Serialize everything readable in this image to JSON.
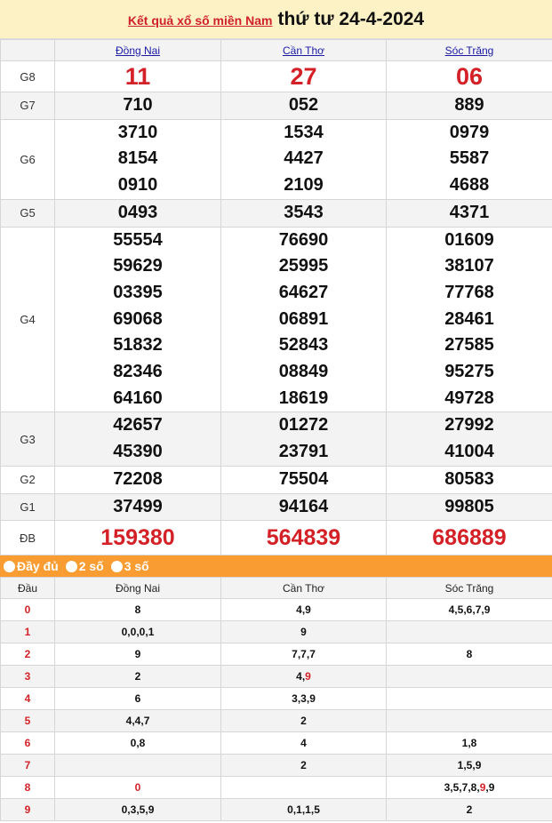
{
  "title": {
    "link": "Kết quả xổ số miền Nam",
    "date": "thứ tư 24-4-2024"
  },
  "provinces": [
    "Đồng Nai",
    "Cần Thơ",
    "Sóc Trăng"
  ],
  "prizes": [
    {
      "label": "G8",
      "cls": "g8",
      "values": [
        [
          "11"
        ],
        [
          "27"
        ],
        [
          "06"
        ]
      ]
    },
    {
      "label": "G7",
      "values": [
        [
          "710"
        ],
        [
          "052"
        ],
        [
          "889"
        ]
      ]
    },
    {
      "label": "G6",
      "values": [
        [
          "3710",
          "8154",
          "0910"
        ],
        [
          "1534",
          "4427",
          "2109"
        ],
        [
          "0979",
          "5587",
          "4688"
        ]
      ]
    },
    {
      "label": "G5",
      "values": [
        [
          "0493"
        ],
        [
          "3543"
        ],
        [
          "4371"
        ]
      ]
    },
    {
      "label": "G4",
      "values": [
        [
          "55554",
          "59629",
          "03395",
          "69068",
          "51832",
          "82346",
          "64160"
        ],
        [
          "76690",
          "25995",
          "64627",
          "06891",
          "52843",
          "08849",
          "18619"
        ],
        [
          "01609",
          "38107",
          "77768",
          "28461",
          "27585",
          "95275",
          "49728"
        ]
      ]
    },
    {
      "label": "G3",
      "values": [
        [
          "42657",
          "45390"
        ],
        [
          "01272",
          "23791"
        ],
        [
          "27992",
          "41004"
        ]
      ]
    },
    {
      "label": "G2",
      "values": [
        [
          "72208"
        ],
        [
          "75504"
        ],
        [
          "80583"
        ]
      ]
    },
    {
      "label": "G1",
      "values": [
        [
          "37499"
        ],
        [
          "94164"
        ],
        [
          "99805"
        ]
      ]
    },
    {
      "label": "ĐB",
      "cls": "db",
      "values": [
        [
          "159380"
        ],
        [
          "564839"
        ],
        [
          "686889"
        ]
      ]
    }
  ],
  "options": [
    "Đầy đủ",
    "2 số",
    "3 số"
  ],
  "loto": {
    "head_label": "Đầu",
    "columns": [
      "Đồng Nai",
      "Cần Thơ",
      "Sóc Trăng"
    ],
    "rows": [
      {
        "d": "0",
        "cells": [
          {
            "v": [
              "8"
            ]
          },
          {
            "v": [
              "4",
              "9"
            ]
          },
          {
            "v": [
              "4",
              "5",
              "6",
              "7",
              "9"
            ]
          }
        ]
      },
      {
        "d": "1",
        "cells": [
          {
            "v": [
              "0",
              "0",
              "0",
              "1"
            ]
          },
          {
            "v": [
              "9"
            ]
          },
          {
            "v": []
          }
        ]
      },
      {
        "d": "2",
        "cells": [
          {
            "v": [
              "9"
            ]
          },
          {
            "v": [
              "7",
              "7",
              "7"
            ]
          },
          {
            "v": [
              "8"
            ]
          }
        ]
      },
      {
        "d": "3",
        "cells": [
          {
            "v": [
              "2"
            ]
          },
          {
            "v": [
              "4",
              "9"
            ],
            "red": [
              1
            ]
          },
          {
            "v": []
          }
        ]
      },
      {
        "d": "4",
        "cells": [
          {
            "v": [
              "6"
            ]
          },
          {
            "v": [
              "3",
              "3",
              "9"
            ]
          },
          {
            "v": []
          }
        ]
      },
      {
        "d": "5",
        "cells": [
          {
            "v": [
              "4",
              "4",
              "7"
            ]
          },
          {
            "v": [
              "2"
            ]
          },
          {
            "v": []
          }
        ]
      },
      {
        "d": "6",
        "cells": [
          {
            "v": [
              "0",
              "8"
            ]
          },
          {
            "v": [
              "4"
            ]
          },
          {
            "v": [
              "1",
              "8"
            ]
          }
        ]
      },
      {
        "d": "7",
        "cells": [
          {
            "v": []
          },
          {
            "v": [
              "2"
            ]
          },
          {
            "v": [
              "1",
              "5",
              "9"
            ]
          }
        ]
      },
      {
        "d": "8",
        "cells": [
          {
            "v": [
              "0"
            ],
            "red": [
              0
            ]
          },
          {
            "v": []
          },
          {
            "v": [
              "3",
              "5",
              "7",
              "8",
              "9",
              "9"
            ],
            "red": [
              4
            ]
          }
        ]
      },
      {
        "d": "9",
        "cells": [
          {
            "v": [
              "0",
              "3",
              "5",
              "9"
            ]
          },
          {
            "v": [
              "0",
              "1",
              "1",
              "5"
            ]
          },
          {
            "v": [
              "2"
            ]
          }
        ]
      }
    ]
  },
  "colors": {
    "red": "#d42127",
    "bar": "#f99d32",
    "title_bg": "#fdf2c6"
  }
}
